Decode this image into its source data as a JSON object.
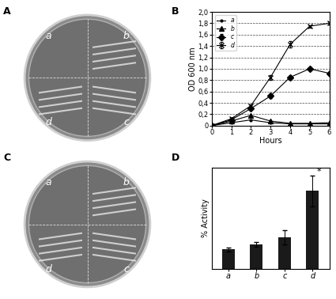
{
  "figure": {
    "panel_labels": [
      "A",
      "B",
      "C",
      "D"
    ],
    "dishes": [
      {
        "panel": "A",
        "sectors": [
          "a",
          "b",
          "c",
          "d"
        ]
      },
      {
        "panel": "C",
        "sectors": [
          "a",
          "b",
          "c",
          "d"
        ]
      }
    ]
  },
  "chart_data": [
    {
      "panel": "B",
      "type": "line",
      "x_label": "Hours",
      "y_label": "OD 600 nm",
      "x": [
        0,
        1,
        2,
        3,
        4,
        5,
        6
      ],
      "xlim": [
        0,
        6
      ],
      "xticks": [
        0,
        1,
        2,
        3,
        4,
        5,
        6
      ],
      "ylim": [
        0,
        2.0
      ],
      "yticks": [
        0,
        {
          "value": 0.2,
          "label": "0,2"
        },
        {
          "value": 0.4,
          "label": "0,4"
        },
        {
          "value": 0.6,
          "label": "0,6"
        },
        {
          "value": 0.8,
          "label": "0,8"
        },
        {
          "value": 1.0,
          "label": "1,0"
        },
        {
          "value": 1.2,
          "label": "1,2"
        },
        {
          "value": 1.4,
          "label": "1,4"
        },
        {
          "value": 1.6,
          "label": "1,6"
        },
        {
          "value": 1.8,
          "label": "1,8"
        },
        {
          "value": 2.0,
          "label": "2,0"
        }
      ],
      "grid": true,
      "legend": "upper left",
      "series": [
        {
          "name": "a",
          "color": "#000000",
          "marker": "point",
          "values": [
            0,
            0.05,
            0.1,
            0.05,
            0.03,
            0.03,
            0.03
          ]
        },
        {
          "name": "b",
          "color": "#000000",
          "marker": "triangle",
          "values": [
            0,
            0.08,
            0.18,
            0.08,
            0.04,
            0.04,
            0.05
          ]
        },
        {
          "name": "c",
          "color": "#000000",
          "marker": "diamond",
          "values": [
            0,
            0.1,
            0.3,
            0.52,
            0.85,
            1.0,
            0.92
          ],
          "errors": [
            0,
            0.01,
            0.02,
            0.03,
            0.03,
            0.02,
            0.02
          ]
        },
        {
          "name": "d",
          "color": "#000000",
          "marker": "x",
          "values": [
            0,
            0.12,
            0.35,
            0.85,
            1.43,
            1.75,
            1.8
          ],
          "errors": [
            0,
            0.01,
            0.02,
            0.04,
            0.05,
            0.02,
            0.02
          ]
        }
      ]
    },
    {
      "panel": "D",
      "type": "bar",
      "y_label": "% Activity",
      "categories": [
        "a",
        "b",
        "c",
        "d"
      ],
      "values": [
        25,
        32,
        41,
        100
      ],
      "errors": [
        3,
        3,
        9,
        20
      ],
      "color": "#1a1a1a",
      "ylim": [
        0,
        130
      ],
      "tick_labels": "x",
      "annotations": [
        {
          "text": "*",
          "category": "d"
        }
      ]
    }
  ]
}
